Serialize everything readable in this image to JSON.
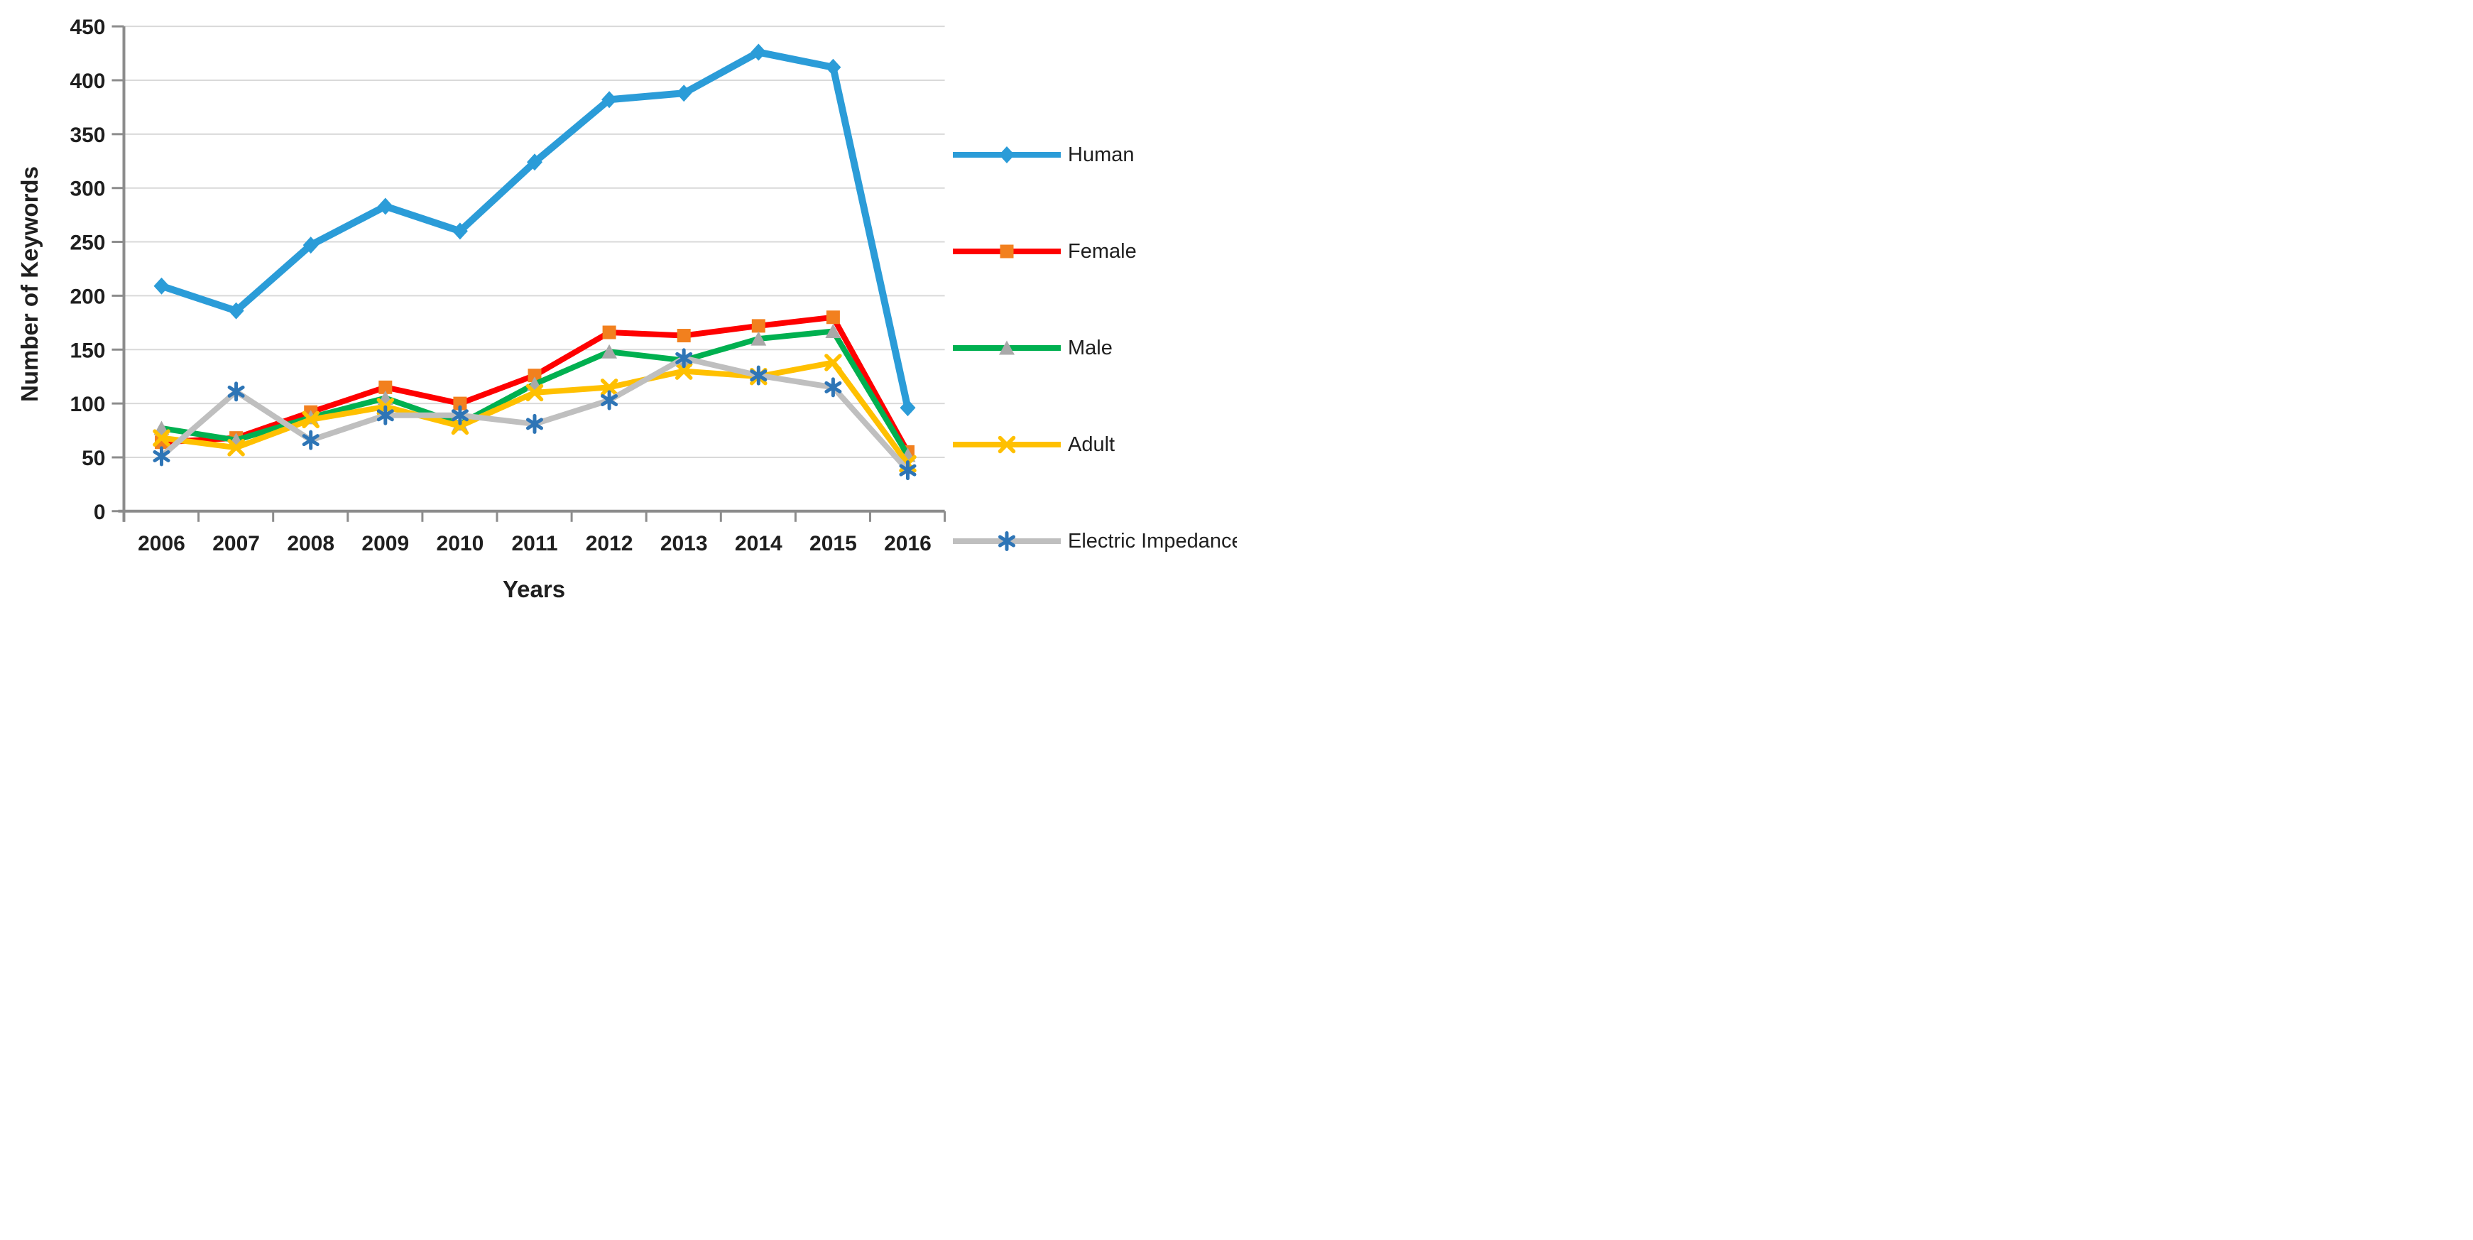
{
  "chart_data": {
    "type": "line",
    "title": "",
    "xlabel": "Years",
    "ylabel": "Number of Keywords",
    "categories": [
      "2006",
      "2007",
      "2008",
      "2009",
      "2010",
      "2011",
      "2012",
      "2013",
      "2014",
      "2015",
      "2016"
    ],
    "ylim": [
      0,
      450
    ],
    "ytick_step": 50,
    "grid": true,
    "legend_position": "right",
    "series": [
      {
        "name": "Human",
        "values": [
          209,
          186,
          247,
          283,
          260,
          324,
          382,
          388,
          426,
          412,
          96
        ],
        "line_color": "#2B9CD8",
        "marker": "diamond",
        "marker_color": "#2B9CD8",
        "line_width": 10
      },
      {
        "name": "Female",
        "values": [
          64,
          68,
          92,
          115,
          100,
          126,
          166,
          163,
          172,
          180,
          55
        ],
        "line_color": "#FE0000",
        "marker": "square",
        "marker_color": "#F2801E",
        "line_width": 8
      },
      {
        "name": "Male",
        "values": [
          77,
          66,
          87,
          105,
          81,
          118,
          148,
          140,
          160,
          167,
          52
        ],
        "line_color": "#00B050",
        "marker": "triangle",
        "marker_color": "#A9A9A9",
        "line_width": 8
      },
      {
        "name": "Adult",
        "values": [
          68,
          59,
          85,
          97,
          79,
          110,
          115,
          130,
          125,
          138,
          44
        ],
        "line_color": "#FFC000",
        "marker": "x",
        "marker_color": "#FFC000",
        "line_width": 8
      },
      {
        "name": "Electric Impedance",
        "values": [
          51,
          111,
          66,
          89,
          89,
          81,
          103,
          142,
          126,
          115,
          38
        ],
        "line_color": "#BFBFBF",
        "marker": "asterisk",
        "marker_color": "#2E75B6",
        "line_width": 8
      }
    ],
    "axis_color": "#8C8C8C",
    "grid_color": "#D9D9D9",
    "text_color": "#1F1F1F"
  }
}
